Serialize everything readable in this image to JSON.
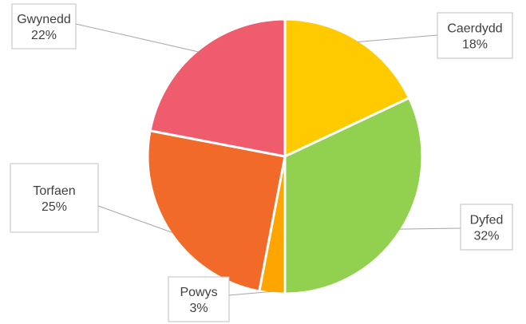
{
  "chart_data": {
    "type": "pie",
    "title": "",
    "legend": "none",
    "slices": [
      {
        "name": "Caerdydd",
        "value": 18,
        "label": "18%",
        "color": "#FFCA00"
      },
      {
        "name": "Dyfed",
        "value": 32,
        "label": "32%",
        "color": "#92D050"
      },
      {
        "name": "Powys",
        "value": 3,
        "label": "3%",
        "color": "#FFA500"
      },
      {
        "name": "Torfaen",
        "value": 25,
        "label": "25%",
        "color": "#F26A2A"
      },
      {
        "name": "Gwynedd",
        "value": 22,
        "label": "22%",
        "color": "#EE5C6E"
      }
    ]
  }
}
